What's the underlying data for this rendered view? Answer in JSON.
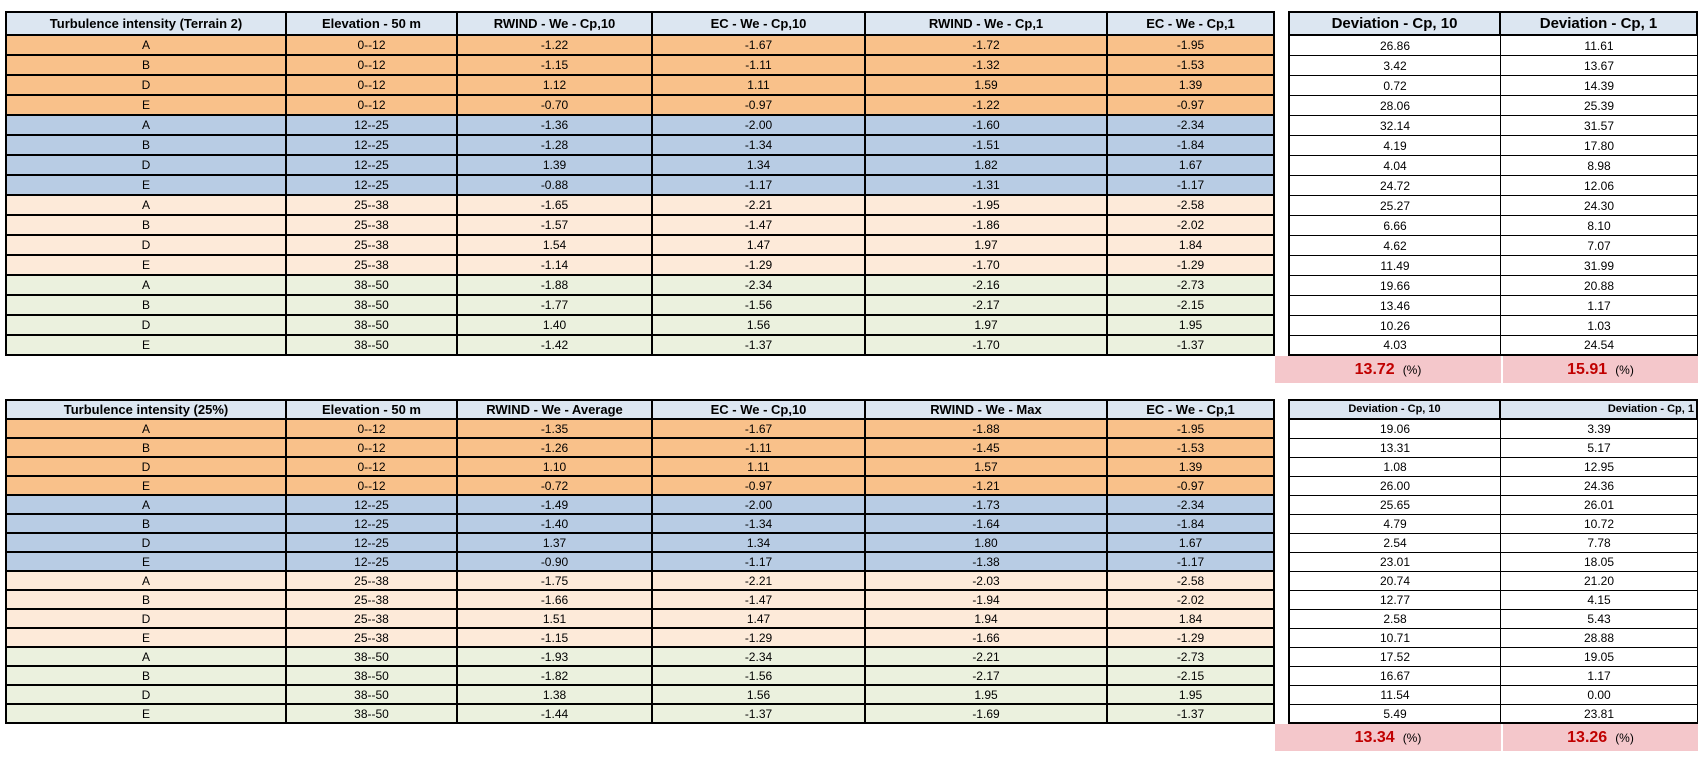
{
  "colors": {
    "header_fill": "#dce6f1",
    "border": "#000000",
    "summary_fill": "#f4c7cb",
    "summary_value_color": "#c00000",
    "group_fills": {
      "0--12": "#f9c18a",
      "12--25": "#b8cce4",
      "25--38": "#fdead9",
      "38--50": "#ebf1de"
    }
  },
  "tables": [
    {
      "id": "terrain2",
      "headers": [
        "Turbulence intensity (Terrain 2)",
        "Elevation - 50 m",
        "RWIND - We - Cp,10",
        "EC - We - Cp,10",
        "RWIND - We - Cp,1",
        "EC - We - Cp,1",
        "Deviation - Cp, 10",
        "Deviation - Cp, 1"
      ],
      "rows": [
        {
          "label": "A",
          "elevation": "0--12",
          "values": [
            "-1.22",
            "-1.67",
            "-1.72",
            "-1.95"
          ],
          "deviations": [
            "26.86",
            "11.61"
          ]
        },
        {
          "label": "B",
          "elevation": "0--12",
          "values": [
            "-1.15",
            "-1.11",
            "-1.32",
            "-1.53"
          ],
          "deviations": [
            "3.42",
            "13.67"
          ]
        },
        {
          "label": "D",
          "elevation": "0--12",
          "values": [
            "1.12",
            "1.11",
            "1.59",
            "1.39"
          ],
          "deviations": [
            "0.72",
            "14.39"
          ]
        },
        {
          "label": "E",
          "elevation": "0--12",
          "values": [
            "-0.70",
            "-0.97",
            "-1.22",
            "-0.97"
          ],
          "deviations": [
            "28.06",
            "25.39"
          ]
        },
        {
          "label": "A",
          "elevation": "12--25",
          "values": [
            "-1.36",
            "-2.00",
            "-1.60",
            "-2.34"
          ],
          "deviations": [
            "32.14",
            "31.57"
          ]
        },
        {
          "label": "B",
          "elevation": "12--25",
          "values": [
            "-1.28",
            "-1.34",
            "-1.51",
            "-1.84"
          ],
          "deviations": [
            "4.19",
            "17.80"
          ]
        },
        {
          "label": "D",
          "elevation": "12--25",
          "values": [
            "1.39",
            "1.34",
            "1.82",
            "1.67"
          ],
          "deviations": [
            "4.04",
            "8.98"
          ]
        },
        {
          "label": "E",
          "elevation": "12--25",
          "values": [
            "-0.88",
            "-1.17",
            "-1.31",
            "-1.17"
          ],
          "deviations": [
            "24.72",
            "12.06"
          ]
        },
        {
          "label": "A",
          "elevation": "25--38",
          "values": [
            "-1.65",
            "-2.21",
            "-1.95",
            "-2.58"
          ],
          "deviations": [
            "25.27",
            "24.30"
          ]
        },
        {
          "label": "B",
          "elevation": "25--38",
          "values": [
            "-1.57",
            "-1.47",
            "-1.86",
            "-2.02"
          ],
          "deviations": [
            "6.66",
            "8.10"
          ]
        },
        {
          "label": "D",
          "elevation": "25--38",
          "values": [
            "1.54",
            "1.47",
            "1.97",
            "1.84"
          ],
          "deviations": [
            "4.62",
            "7.07"
          ]
        },
        {
          "label": "E",
          "elevation": "25--38",
          "values": [
            "-1.14",
            "-1.29",
            "-1.70",
            "-1.29"
          ],
          "deviations": [
            "11.49",
            "31.99"
          ]
        },
        {
          "label": "A",
          "elevation": "38--50",
          "values": [
            "-1.88",
            "-2.34",
            "-2.16",
            "-2.73"
          ],
          "deviations": [
            "19.66",
            "20.88"
          ]
        },
        {
          "label": "B",
          "elevation": "38--50",
          "values": [
            "-1.77",
            "-1.56",
            "-2.17",
            "-2.15"
          ],
          "deviations": [
            "13.46",
            "1.17"
          ]
        },
        {
          "label": "D",
          "elevation": "38--50",
          "values": [
            "1.40",
            "1.56",
            "1.97",
            "1.95"
          ],
          "deviations": [
            "10.26",
            "1.03"
          ]
        },
        {
          "label": "E",
          "elevation": "38--50",
          "values": [
            "-1.42",
            "-1.37",
            "-1.70",
            "-1.37"
          ],
          "deviations": [
            "4.03",
            "24.54"
          ]
        }
      ],
      "summary": {
        "deviation_cp10": "13.72",
        "deviation_cp1": "15.91",
        "unit": "(%)"
      }
    },
    {
      "id": "turbulence25",
      "headers": [
        "Turbulence intensity (25%)",
        "Elevation - 50 m",
        "RWIND - We - Average",
        "EC - We - Cp,10",
        "RWIND - We - Max",
        "EC - We - Cp,1",
        "Deviation - Cp, 10",
        "Deviation - Cp, 1"
      ],
      "rows": [
        {
          "label": "A",
          "elevation": "0--12",
          "values": [
            "-1.35",
            "-1.67",
            "-1.88",
            "-1.95"
          ],
          "deviations": [
            "19.06",
            "3.39"
          ]
        },
        {
          "label": "B",
          "elevation": "0--12",
          "values": [
            "-1.26",
            "-1.11",
            "-1.45",
            "-1.53"
          ],
          "deviations": [
            "13.31",
            "5.17"
          ]
        },
        {
          "label": "D",
          "elevation": "0--12",
          "values": [
            "1.10",
            "1.11",
            "1.57",
            "1.39"
          ],
          "deviations": [
            "1.08",
            "12.95"
          ]
        },
        {
          "label": "E",
          "elevation": "0--12",
          "values": [
            "-0.72",
            "-0.97",
            "-1.21",
            "-0.97"
          ],
          "deviations": [
            "26.00",
            "24.36"
          ]
        },
        {
          "label": "A",
          "elevation": "12--25",
          "values": [
            "-1.49",
            "-2.00",
            "-1.73",
            "-2.34"
          ],
          "deviations": [
            "25.65",
            "26.01"
          ]
        },
        {
          "label": "B",
          "elevation": "12--25",
          "values": [
            "-1.40",
            "-1.34",
            "-1.64",
            "-1.84"
          ],
          "deviations": [
            "4.79",
            "10.72"
          ]
        },
        {
          "label": "D",
          "elevation": "12--25",
          "values": [
            "1.37",
            "1.34",
            "1.80",
            "1.67"
          ],
          "deviations": [
            "2.54",
            "7.78"
          ]
        },
        {
          "label": "E",
          "elevation": "12--25",
          "values": [
            "-0.90",
            "-1.17",
            "-1.38",
            "-1.17"
          ],
          "deviations": [
            "23.01",
            "18.05"
          ]
        },
        {
          "label": "A",
          "elevation": "25--38",
          "values": [
            "-1.75",
            "-2.21",
            "-2.03",
            "-2.58"
          ],
          "deviations": [
            "20.74",
            "21.20"
          ]
        },
        {
          "label": "B",
          "elevation": "25--38",
          "values": [
            "-1.66",
            "-1.47",
            "-1.94",
            "-2.02"
          ],
          "deviations": [
            "12.77",
            "4.15"
          ]
        },
        {
          "label": "D",
          "elevation": "25--38",
          "values": [
            "1.51",
            "1.47",
            "1.94",
            "1.84"
          ],
          "deviations": [
            "2.58",
            "5.43"
          ]
        },
        {
          "label": "E",
          "elevation": "25--38",
          "values": [
            "-1.15",
            "-1.29",
            "-1.66",
            "-1.29"
          ],
          "deviations": [
            "10.71",
            "28.88"
          ]
        },
        {
          "label": "A",
          "elevation": "38--50",
          "values": [
            "-1.93",
            "-2.34",
            "-2.21",
            "-2.73"
          ],
          "deviations": [
            "17.52",
            "19.05"
          ]
        },
        {
          "label": "B",
          "elevation": "38--50",
          "values": [
            "-1.82",
            "-1.56",
            "-2.17",
            "-2.15"
          ],
          "deviations": [
            "16.67",
            "1.17"
          ]
        },
        {
          "label": "D",
          "elevation": "38--50",
          "values": [
            "1.38",
            "1.56",
            "1.95",
            "1.95"
          ],
          "deviations": [
            "11.54",
            "0.00"
          ]
        },
        {
          "label": "E",
          "elevation": "38--50",
          "values": [
            "-1.44",
            "-1.37",
            "-1.69",
            "-1.37"
          ],
          "deviations": [
            "5.49",
            "23.81"
          ]
        }
      ],
      "summary": {
        "deviation_cp10": "13.34",
        "deviation_cp1": "13.26",
        "unit": "(%)"
      }
    }
  ]
}
